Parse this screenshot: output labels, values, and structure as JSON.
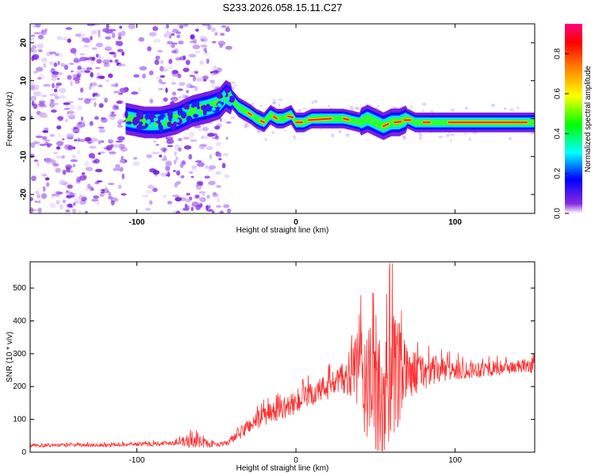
{
  "title": "S233.2026.058.15.11.C27",
  "chart_data": [
    {
      "type": "heatmap",
      "xlabel": "Height of straight line (km)",
      "ylabel": "Frequency (Hz)",
      "xlim": [
        -167,
        150
      ],
      "ylim": [
        -25,
        25
      ],
      "x_ticks": [
        -100,
        0,
        100
      ],
      "y_ticks": [
        -20,
        -10,
        0,
        10,
        20
      ],
      "ridge": {
        "x": [
          -107,
          -95,
          -85,
          -75,
          -65,
          -55,
          -48,
          -44,
          -40,
          -36,
          -32,
          -28,
          -25,
          -20,
          -16,
          -12,
          -8,
          -3,
          0,
          5,
          10,
          20,
          30,
          40,
          45,
          50,
          55,
          60,
          65,
          70,
          75,
          80,
          85,
          90,
          100,
          110,
          120,
          130,
          140,
          150
        ],
        "y": [
          0,
          -1,
          -1,
          0,
          2,
          3,
          4,
          6,
          5,
          3,
          2,
          1,
          0,
          -1,
          1,
          0,
          0,
          1,
          -1,
          -1,
          0,
          0,
          0,
          -1,
          0,
          -1,
          -2,
          -1,
          -1,
          0,
          -1,
          -1,
          -1,
          -1,
          -1,
          -1,
          -1,
          -1,
          -1,
          -1
        ]
      },
      "colorbar": {
        "label": "Normalized spectral amplitude",
        "range": [
          0,
          0.95
        ],
        "ticks": [
          "0.0",
          "0.2",
          "0.4",
          "0.6",
          "0.8"
        ],
        "colors": [
          "#ffffff",
          "#8a2be2",
          "#0000ff",
          "#00ffff",
          "#00ff00",
          "#ffff00",
          "#ff8000",
          "#ff0000",
          "#ff0080"
        ]
      }
    },
    {
      "type": "line",
      "xlabel": "Height of straight line (km)",
      "ylabel": "SNR (10 * v/v)",
      "xlim": [
        -167,
        150
      ],
      "ylim": [
        0,
        580
      ],
      "x_ticks": [
        -100,
        0,
        100
      ],
      "y_ticks": [
        0,
        100,
        200,
        300,
        400,
        500
      ],
      "color": "#ff3030",
      "envelope": {
        "x": [
          -167,
          -120,
          -90,
          -75,
          -65,
          -55,
          -45,
          -38,
          -30,
          -20,
          -10,
          0,
          10,
          20,
          30,
          35,
          40,
          45,
          50,
          55,
          60,
          65,
          70,
          80,
          90,
          100,
          120,
          140,
          150
        ],
        "base": [
          20,
          22,
          25,
          30,
          35,
          25,
          25,
          45,
          80,
          110,
          130,
          150,
          175,
          200,
          225,
          240,
          255,
          200,
          170,
          190,
          200,
          230,
          240,
          245,
          250,
          250,
          255,
          260,
          265
        ],
        "amp": [
          7,
          8,
          10,
          12,
          35,
          15,
          10,
          25,
          35,
          45,
          45,
          50,
          55,
          60,
          70,
          120,
          210,
          270,
          300,
          320,
          340,
          230,
          110,
          80,
          60,
          45,
          35,
          30,
          35
        ]
      }
    }
  ]
}
